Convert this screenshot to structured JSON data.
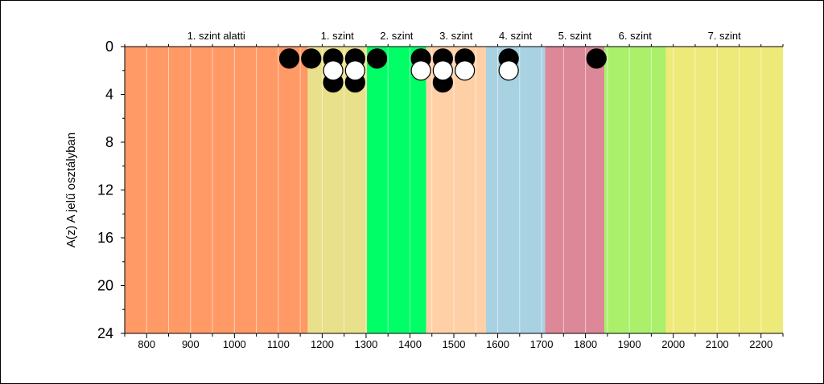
{
  "chart_data": {
    "type": "scatter",
    "xlabel": "",
    "ylabel": "A(z) A jelű osztályban",
    "xlim": [
      750,
      2250
    ],
    "ylim": [
      0,
      24
    ],
    "y_inverted": true,
    "x_ticks": [
      800,
      900,
      1000,
      1100,
      1200,
      1300,
      1400,
      1500,
      1600,
      1700,
      1800,
      1900,
      2000,
      2100,
      2200
    ],
    "y_ticks": [
      0,
      4,
      8,
      12,
      16,
      20,
      24
    ],
    "grid": "vertical minor lines every 50",
    "bands": [
      {
        "label": "1. szint alatti",
        "from": 750,
        "to": 1167,
        "color": "#FF9966"
      },
      {
        "label": "1. szint",
        "from": 1167,
        "to": 1302,
        "color": "#E8E08A"
      },
      {
        "label": "2. szint",
        "from": 1302,
        "to": 1437,
        "color": "#00FF66"
      },
      {
        "label": "3. szint",
        "from": 1437,
        "to": 1573,
        "color": "#FFD0A6"
      },
      {
        "label": "4. szint",
        "from": 1573,
        "to": 1708,
        "color": "#A8D2E2"
      },
      {
        "label": "5. szint",
        "from": 1708,
        "to": 1843,
        "color": "#DC8898"
      },
      {
        "label": "6. szint",
        "from": 1843,
        "to": 1983,
        "color": "#AAF06A"
      },
      {
        "label": "7. szint",
        "from": 1983,
        "to": 2250,
        "color": "#EEEA7A"
      }
    ],
    "series": [
      {
        "marker_color": "#000000",
        "points": [
          {
            "x": 1125,
            "y": 1
          },
          {
            "x": 1175,
            "y": 1
          },
          {
            "x": 1225,
            "y": 1
          },
          {
            "x": 1275,
            "y": 1
          },
          {
            "x": 1325,
            "y": 1
          },
          {
            "x": 1425,
            "y": 1
          },
          {
            "x": 1475,
            "y": 1
          },
          {
            "x": 1525,
            "y": 1
          },
          {
            "x": 1625,
            "y": 1
          },
          {
            "x": 1825,
            "y": 1
          },
          {
            "x": 1225,
            "y": 3
          },
          {
            "x": 1275,
            "y": 3
          },
          {
            "x": 1475,
            "y": 3
          }
        ]
      },
      {
        "marker_color": "#FFFFFF",
        "points": [
          {
            "x": 1225,
            "y": 2
          },
          {
            "x": 1275,
            "y": 2
          },
          {
            "x": 1425,
            "y": 2
          },
          {
            "x": 1475,
            "y": 2
          },
          {
            "x": 1525,
            "y": 2
          },
          {
            "x": 1625,
            "y": 2
          }
        ]
      }
    ]
  }
}
